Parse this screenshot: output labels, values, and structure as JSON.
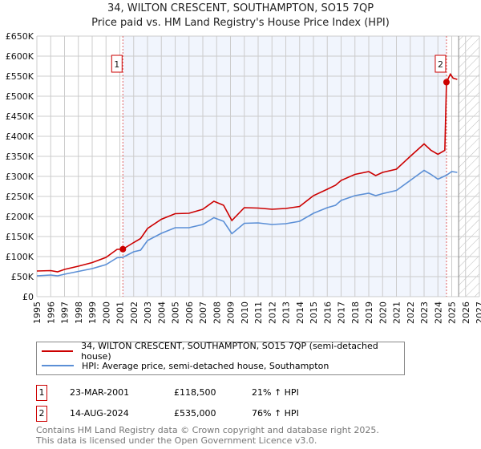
{
  "chart_data": {
    "type": "line",
    "title": "34, WILTON CRESCENT, SOUTHAMPTON, SO15 7QP",
    "subtitle": "Price paid vs. HM Land Registry's House Price Index (HPI)",
    "xlim": [
      1995,
      2027
    ],
    "ylim": [
      0,
      650000
    ],
    "x_ticks": [
      "1995",
      "1996",
      "1997",
      "1998",
      "1999",
      "2000",
      "2001",
      "2002",
      "2003",
      "2004",
      "2005",
      "2006",
      "2007",
      "2008",
      "2009",
      "2010",
      "2011",
      "2012",
      "2013",
      "2014",
      "2015",
      "2016",
      "2017",
      "2018",
      "2019",
      "2020",
      "2021",
      "2022",
      "2023",
      "2024",
      "2025",
      "2026",
      "2027"
    ],
    "y_ticks": [
      {
        "v": 0,
        "l": "£0"
      },
      {
        "v": 50000,
        "l": "£50K"
      },
      {
        "v": 100000,
        "l": "£100K"
      },
      {
        "v": 150000,
        "l": "£150K"
      },
      {
        "v": 200000,
        "l": "£200K"
      },
      {
        "v": 250000,
        "l": "£250K"
      },
      {
        "v": 300000,
        "l": "£300K"
      },
      {
        "v": 350000,
        "l": "£350K"
      },
      {
        "v": 400000,
        "l": "£400K"
      },
      {
        "v": 450000,
        "l": "£450K"
      },
      {
        "v": 500000,
        "l": "£500K"
      },
      {
        "v": 550000,
        "l": "£550K"
      },
      {
        "v": 600000,
        "l": "£600K"
      },
      {
        "v": 650000,
        "l": "£650K"
      }
    ],
    "grid": true,
    "shaded_range": [
      2001.22,
      2024.62
    ],
    "forecast_hatch_from": 2025.5,
    "series": [
      {
        "name": "34, WILTON CRESCENT, SOUTHAMPTON, SO15 7QP (semi-detached house)",
        "color": "#cc0000",
        "x": [
          1995,
          1996,
          1996.5,
          1997,
          1998,
          1999,
          2000,
          2000.8,
          2001.22,
          2002,
          2002.5,
          2003,
          2004,
          2005,
          2006,
          2007,
          2007.8,
          2008.5,
          2009.1,
          2010,
          2011,
          2012,
          2013,
          2014,
          2015,
          2016,
          2016.6,
          2017,
          2018,
          2019,
          2019.5,
          2020,
          2021,
          2022,
          2023,
          2023.5,
          2024,
          2024.5,
          2024.62,
          2024.9,
          2025.1,
          2025.4
        ],
        "y": [
          64000,
          65000,
          62000,
          68000,
          76000,
          85000,
          98000,
          118000,
          118500,
          135000,
          145000,
          170000,
          193000,
          207000,
          208000,
          218000,
          238000,
          228000,
          190000,
          222000,
          221000,
          218000,
          220000,
          225000,
          252000,
          268000,
          278000,
          290000,
          305000,
          312000,
          302000,
          310000,
          318000,
          350000,
          381000,
          365000,
          355000,
          365000,
          535000,
          555000,
          545000,
          542000
        ]
      },
      {
        "name": "HPI: Average price, semi-detached house, Southampton",
        "color": "#5b8fd6",
        "x": [
          1995,
          1996,
          1996.5,
          1997,
          1998,
          1999,
          2000,
          2000.8,
          2001.22,
          2002,
          2002.5,
          2003,
          2004,
          2005,
          2006,
          2007,
          2007.8,
          2008.5,
          2009.1,
          2010,
          2011,
          2012,
          2013,
          2014,
          2015,
          2016,
          2016.6,
          2017,
          2018,
          2019,
          2019.5,
          2020,
          2021,
          2022,
          2023,
          2023.5,
          2024,
          2024.62,
          2025,
          2025.4
        ],
        "y": [
          52000,
          54000,
          52000,
          56000,
          63000,
          70000,
          80000,
          97000,
          98000,
          112000,
          116000,
          140000,
          158000,
          172000,
          172000,
          180000,
          197000,
          188000,
          157000,
          183000,
          184000,
          180000,
          182000,
          188000,
          208000,
          222000,
          228000,
          240000,
          252000,
          258000,
          252000,
          257000,
          265000,
          290000,
          315000,
          305000,
          293000,
          303000,
          312000,
          310000
        ]
      }
    ],
    "annotations": [
      {
        "label": "1",
        "x": 2001.22,
        "y": 118500
      },
      {
        "label": "2",
        "x": 2024.62,
        "y": 535000
      }
    ]
  },
  "transactions": [
    {
      "num": "1",
      "date": "23-MAR-2001",
      "price": "£118,500",
      "delta": "21% ↑ HPI"
    },
    {
      "num": "2",
      "date": "14-AUG-2024",
      "price": "£535,000",
      "delta": "76% ↑ HPI"
    }
  ],
  "footer": {
    "line1": "Contains HM Land Registry data © Crown copyright and database right 2025.",
    "line2": "This data is licensed under the Open Government Licence v3.0."
  }
}
